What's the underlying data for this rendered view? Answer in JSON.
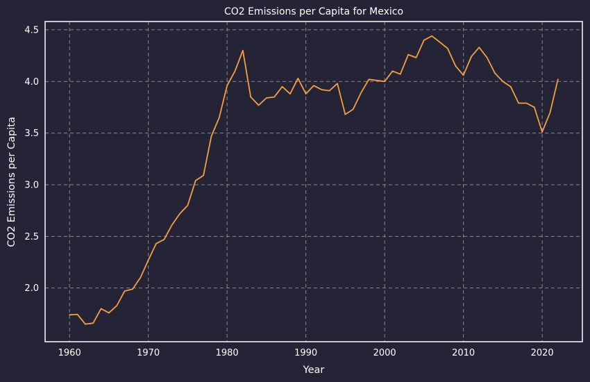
{
  "chart_data": {
    "type": "line",
    "title": "CO2 Emissions per Capita for Mexico",
    "xlabel": "Year",
    "ylabel": "CO2 Emissions per Capita",
    "xlim": [
      1956.9,
      2025.1
    ],
    "ylim": [
      1.48,
      4.58
    ],
    "xticks": [
      "1960",
      "1970",
      "1980",
      "1990",
      "2000",
      "2010",
      "2020"
    ],
    "yticks": [
      "2.0",
      "2.5",
      "3.0",
      "3.5",
      "4.0",
      "4.5"
    ],
    "grid": true,
    "colors": {
      "background": "#252336",
      "line": "#f5a043",
      "grid": "#8a8a8f",
      "axes": "#ffffff",
      "text": "#ffffff"
    },
    "series": [
      {
        "x": [
          1960,
          1961,
          1962,
          1963,
          1964,
          1965,
          1966,
          1967,
          1968,
          1969,
          1970,
          1971,
          1972,
          1973,
          1974,
          1975,
          1976,
          1977,
          1978,
          1979,
          1980,
          1981,
          1982,
          1983,
          1984,
          1985,
          1986,
          1987,
          1988,
          1989,
          1990,
          1991,
          1992,
          1993,
          1994,
          1995,
          1996,
          1997,
          1998,
          1999,
          2000,
          2001,
          2002,
          2003,
          2004,
          2005,
          2006,
          2007,
          2008,
          2009,
          2010,
          2011,
          2012,
          2013,
          2014,
          2015,
          2016,
          2017,
          2018,
          2019,
          2020,
          2021,
          2022
        ],
        "values": [
          1.74,
          1.745,
          1.65,
          1.66,
          1.8,
          1.76,
          1.83,
          1.97,
          1.99,
          2.1,
          2.27,
          2.43,
          2.47,
          2.61,
          2.72,
          2.8,
          3.04,
          3.09,
          3.47,
          3.65,
          3.96,
          4.1,
          4.3,
          3.85,
          3.77,
          3.84,
          3.85,
          3.95,
          3.88,
          4.03,
          3.88,
          3.96,
          3.92,
          3.91,
          3.98,
          3.68,
          3.73,
          3.89,
          4.02,
          4.01,
          4.0,
          4.1,
          4.07,
          4.26,
          4.23,
          4.4,
          4.44,
          4.38,
          4.32,
          4.15,
          4.06,
          4.24,
          4.33,
          4.23,
          4.08,
          4.0,
          3.95,
          3.79,
          3.79,
          3.75,
          3.51,
          3.7,
          4.02
        ]
      }
    ]
  }
}
